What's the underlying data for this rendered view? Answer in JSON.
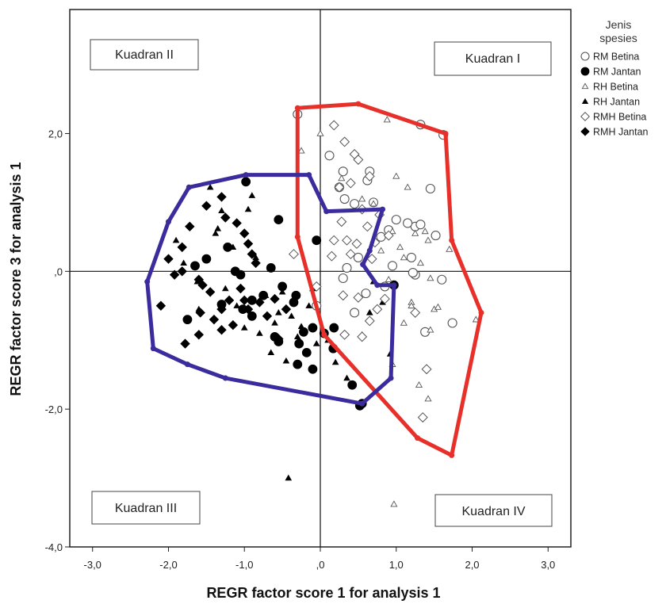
{
  "chart_data": {
    "type": "scatter",
    "xlabel": "REGR factor score   1 for analysis 1",
    "ylabel": "REGR factor score   3 for analysis 1",
    "xlim": [
      -3.3,
      3.3
    ],
    "ylim": [
      -4.0,
      3.8
    ],
    "x_ticks": [
      -3.0,
      -2.0,
      -1.0,
      0.0,
      1.0,
      2.0,
      3.0
    ],
    "x_tick_labels": [
      "-3,0",
      "-2,0",
      "-1,0",
      ",0",
      "1,0",
      "2,0",
      "3,0"
    ],
    "y_ticks": [
      -4.0,
      -2.0,
      0.0,
      2.0
    ],
    "y_tick_labels": [
      "-4,0",
      "-2,0",
      ",0",
      "2,0"
    ],
    "reference_lines": {
      "x": 0,
      "y": 0
    },
    "grid": false,
    "legend": {
      "title": "Jenis spesies",
      "placement": "right",
      "entries": [
        {
          "label": "RM Betina",
          "marker": "open-circle"
        },
        {
          "label": "RM Jantan",
          "marker": "filled-circle"
        },
        {
          "label": "RH Betina",
          "marker": "open-triangle"
        },
        {
          "label": "RH Jantan",
          "marker": "filled-triangle"
        },
        {
          "label": "RMH Betina",
          "marker": "open-diamond"
        },
        {
          "label": "RMH Jantan",
          "marker": "filled-diamond"
        }
      ]
    },
    "quadrant_labels": [
      {
        "text": "Kuadran I",
        "quadrant": "top-right"
      },
      {
        "text": "Kuadran II",
        "quadrant": "top-left"
      },
      {
        "text": "Kuadran III",
        "quadrant": "bottom-left"
      },
      {
        "text": "Kuadran IV",
        "quadrant": "bottom-right"
      }
    ],
    "hulls": [
      {
        "color": "#e8302a",
        "points": [
          [
            -0.3,
            2.37
          ],
          [
            0.5,
            2.43
          ],
          [
            1.65,
            2.0
          ],
          [
            1.73,
            0.45
          ],
          [
            2.12,
            -0.6
          ],
          [
            1.73,
            -2.67
          ],
          [
            1.28,
            -2.42
          ],
          [
            0.05,
            -0.92
          ],
          [
            -0.3,
            0.5
          ],
          [
            -0.3,
            2.37
          ]
        ]
      },
      {
        "color": "#3a2c9c",
        "points": [
          [
            -0.98,
            1.4
          ],
          [
            -0.15,
            1.4
          ],
          [
            0.08,
            0.87
          ],
          [
            0.82,
            0.9
          ],
          [
            0.65,
            0.3
          ],
          [
            0.56,
            0.1
          ],
          [
            0.75,
            -0.2
          ],
          [
            0.97,
            -0.2
          ],
          [
            0.93,
            -1.55
          ],
          [
            0.55,
            -1.92
          ],
          [
            -1.25,
            -1.55
          ],
          [
            -1.75,
            -1.35
          ],
          [
            -2.2,
            -1.12
          ],
          [
            -2.28,
            -0.15
          ],
          [
            -2.0,
            0.72
          ],
          [
            -1.73,
            1.22
          ],
          [
            -0.98,
            1.4
          ]
        ]
      }
    ],
    "series": [
      {
        "name": "RM Betina",
        "marker": "open-circle",
        "x": [
          -0.3,
          0.12,
          0.3,
          0.25,
          0.32,
          0.45,
          0.65,
          0.62,
          0.7,
          1.0,
          1.32,
          1.62,
          1.45,
          1.25,
          1.15,
          0.9,
          0.8,
          1.32,
          0.5,
          0.35,
          1.2,
          1.52,
          1.74,
          1.38,
          0.45,
          0.6,
          0.3,
          0.85,
          0.95,
          1.25,
          1.6,
          1.22,
          -0.05
        ],
        "y": [
          2.28,
          1.68,
          1.45,
          1.22,
          1.05,
          0.98,
          1.45,
          1.32,
          1.0,
          0.75,
          2.13,
          1.98,
          1.2,
          0.65,
          0.7,
          0.6,
          0.5,
          0.68,
          0.2,
          0.05,
          0.2,
          0.52,
          -0.75,
          -0.88,
          -0.6,
          -0.32,
          -0.1,
          -0.22,
          0.08,
          -0.05,
          -0.12,
          -0.02,
          -0.5
        ]
      },
      {
        "name": "RM Jantan",
        "marker": "filled-circle",
        "x": [
          -0.98,
          -1.22,
          -1.5,
          -1.65,
          -1.12,
          -1.05,
          -0.55,
          -0.65,
          -0.5,
          -0.9,
          -0.75,
          -1.3,
          -0.32,
          -0.05,
          -0.9,
          -0.6,
          -0.22,
          -0.1,
          0.05,
          0.18,
          -0.28,
          -0.3,
          0.17,
          0.52,
          -0.18,
          -0.35,
          -0.1,
          0.42,
          0.55,
          0.97,
          -0.55,
          -1.75,
          -1.02
        ],
        "y": [
          1.3,
          0.35,
          0.18,
          0.08,
          0.0,
          -0.05,
          0.75,
          0.05,
          -0.22,
          -0.42,
          -0.35,
          -0.48,
          -0.35,
          0.45,
          -0.65,
          -0.95,
          -0.88,
          -0.82,
          -0.9,
          -0.82,
          -1.05,
          -1.35,
          -1.12,
          -1.95,
          -1.18,
          -0.45,
          -1.42,
          -1.65,
          -1.92,
          -0.2,
          -1.02,
          -0.7,
          -0.55
        ]
      },
      {
        "name": "RH Betina",
        "marker": "open-triangle",
        "x": [
          -0.25,
          0.0,
          0.88,
          1.0,
          1.15,
          0.28,
          0.55,
          0.7,
          0.95,
          1.25,
          1.38,
          1.42,
          1.05,
          1.1,
          0.8,
          1.32,
          1.45,
          1.7,
          0.9,
          1.2,
          1.5,
          1.55,
          1.45,
          1.1,
          1.2,
          0.95,
          2.05,
          1.42,
          1.3,
          0.97
        ],
        "y": [
          1.75,
          2.0,
          2.2,
          1.38,
          1.22,
          1.35,
          1.05,
          0.98,
          0.58,
          0.55,
          0.58,
          0.45,
          0.35,
          0.2,
          0.3,
          0.12,
          -0.1,
          0.32,
          -0.12,
          -0.45,
          -0.55,
          -0.52,
          -0.85,
          -0.75,
          -0.5,
          -1.35,
          -0.7,
          -1.85,
          -1.65,
          -3.38
        ]
      },
      {
        "name": "RH Jantan",
        "marker": "filled-triangle",
        "x": [
          -1.9,
          -1.8,
          -1.62,
          -1.6,
          -1.38,
          -1.35,
          -1.25,
          -1.1,
          -0.95,
          -0.85,
          -0.72,
          -0.6,
          -0.55,
          -0.5,
          -0.38,
          -0.3,
          -0.15,
          -0.1,
          -0.05,
          0.1,
          0.2,
          0.35,
          0.55,
          0.65,
          0.7,
          0.82,
          0.92,
          -1.45,
          -1.3,
          -1.15,
          -1.0,
          -0.8,
          -0.65,
          -0.45,
          -0.25,
          -0.9,
          -0.42
        ],
        "y": [
          0.45,
          0.12,
          -0.15,
          -0.55,
          0.55,
          0.62,
          -0.25,
          -0.5,
          0.9,
          0.2,
          -0.35,
          -0.75,
          -0.6,
          -0.3,
          -0.65,
          -0.95,
          -0.5,
          -0.25,
          -1.05,
          -1.0,
          -1.32,
          -1.55,
          -0.92,
          -0.6,
          -0.15,
          -0.45,
          -1.2,
          1.22,
          0.88,
          0.35,
          -0.82,
          -0.9,
          -1.18,
          -1.3,
          -0.8,
          1.1,
          -3.0
        ]
      },
      {
        "name": "RMH Betina",
        "marker": "open-diamond",
        "x": [
          0.18,
          0.32,
          0.45,
          0.5,
          0.65,
          0.4,
          0.25,
          0.18,
          0.28,
          0.35,
          0.48,
          0.55,
          0.78,
          0.62,
          0.72,
          0.9,
          0.68,
          0.4,
          0.15,
          -0.35,
          -0.05,
          0.3,
          0.5,
          0.85,
          0.75,
          1.25,
          1.4,
          1.35,
          0.65,
          0.55,
          0.32
        ],
        "y": [
          2.12,
          1.88,
          1.7,
          1.62,
          1.38,
          1.28,
          1.22,
          0.45,
          0.72,
          0.45,
          0.4,
          0.9,
          0.82,
          0.65,
          0.42,
          0.52,
          0.18,
          0.25,
          0.22,
          0.25,
          -0.22,
          -0.35,
          -0.38,
          -0.4,
          -0.55,
          -0.6,
          -1.42,
          -2.12,
          -0.72,
          -0.95,
          -0.92
        ]
      },
      {
        "name": "RMH Jantan",
        "marker": "filled-diamond",
        "x": [
          -1.5,
          -1.3,
          -1.25,
          -1.1,
          -1.0,
          -0.95,
          -0.9,
          -0.85,
          -1.72,
          -1.82,
          -2.0,
          -1.92,
          -1.6,
          -1.55,
          -1.45,
          -1.3,
          -1.2,
          -1.05,
          -0.95,
          -0.8,
          -0.7,
          -0.6,
          -0.45,
          -1.58,
          -1.4,
          -1.3,
          -1.15,
          -1.6,
          -1.78,
          -2.1,
          -1.0,
          -0.55,
          -1.82
        ],
        "y": [
          0.95,
          1.08,
          0.78,
          0.7,
          0.55,
          0.4,
          0.25,
          0.12,
          0.65,
          0.35,
          0.18,
          -0.05,
          -0.12,
          -0.2,
          -0.3,
          -0.55,
          -0.42,
          -0.25,
          -0.55,
          -0.45,
          -0.65,
          -0.4,
          -0.55,
          -0.6,
          -0.7,
          -0.85,
          -0.78,
          -0.92,
          -1.05,
          -0.5,
          -0.42,
          -0.98,
          0.0
        ]
      }
    ]
  }
}
